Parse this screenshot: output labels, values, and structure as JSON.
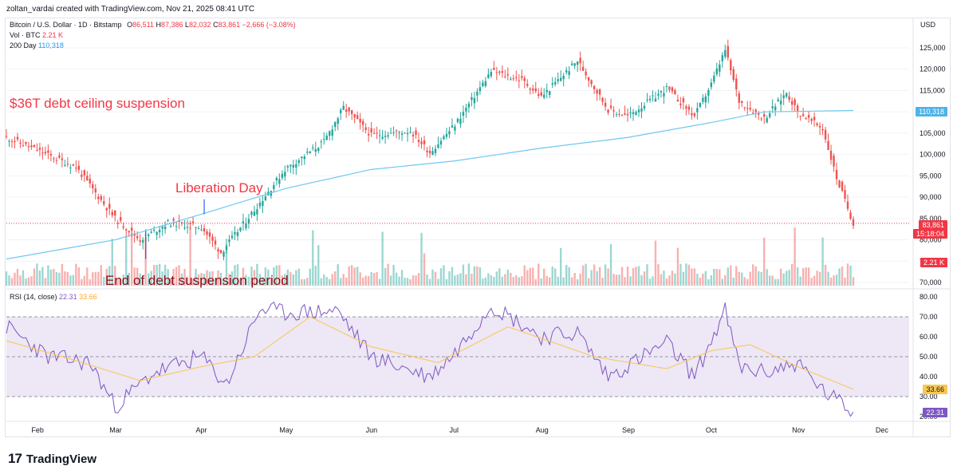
{
  "header": {
    "creator": "zoltan_vardai created with TradingView.com, Nov 21, 2025 08:41 UTC"
  },
  "legend": {
    "symbol": "Bitcoin / U.S. Dollar · 1D · Bitstamp",
    "o_label": "O",
    "o_value": "86,511",
    "h_label": "H",
    "h_value": "87,386",
    "l_label": "L",
    "l_value": "82,032",
    "c_label": "C",
    "c_value": "83,861",
    "change": "−2,666 (−3.08%)",
    "vol_label": "Vol · BTC",
    "vol_value": "2.21 K",
    "ma_label": "200 Day",
    "ma_value": "110,318"
  },
  "annotations": {
    "debt_ceiling": "$36T debt ceiling suspension",
    "liberation_day": "Liberation Day",
    "end_suspension": "End of debt suspension period"
  },
  "rsi": {
    "label": "RSI (14, close)",
    "value": "22.31",
    "ma_value": "33.66"
  },
  "price_axis": {
    "currency": "USD",
    "ticks": [
      "125,000",
      "120,000",
      "115,000",
      "110,000",
      "105,000",
      "100,000",
      "95,000",
      "90,000",
      "85,000",
      "80,000",
      "75,000",
      "70,000"
    ],
    "badges": {
      "ma": "110,318",
      "price": "83,861",
      "countdown": "15:18:04",
      "volume": "2.21 K"
    }
  },
  "rsi_axis": {
    "ticks": [
      "80.00",
      "70.00",
      "60.00",
      "50.00",
      "40.00",
      "30.00",
      "20.00"
    ],
    "badges": {
      "ma": "33.66",
      "rsi": "22.31"
    }
  },
  "time_axis": {
    "labels": [
      "Feb",
      "Mar",
      "Apr",
      "May",
      "Jun",
      "Jul",
      "Aug",
      "Sep",
      "Oct",
      "Nov",
      "Dec"
    ]
  },
  "footer": {
    "logo_mark": "17",
    "brand": "TradingView"
  },
  "colors": {
    "up": "#26a69a",
    "down": "#ef5350",
    "ma200": "#6fc7f0",
    "rsi": "#7e57c2",
    "rsi_ma": "#f9c74f",
    "rsi_band": "#ede7f6",
    "annotation": "#f23645"
  },
  "chart_data": [
    {
      "type": "candlestick",
      "title": "Bitcoin / U.S. Dollar · 1D · Bitstamp",
      "ylabel": "USD",
      "ylim": [
        70000,
        127000
      ],
      "x_range": [
        "2025-01-21",
        "2025-11-21"
      ],
      "last_close": 83861,
      "series": [
        {
          "name": "BTCUSD close (approx.)",
          "dates": [
            "2025-01-21",
            "2025-02-01",
            "2025-02-15",
            "2025-03-01",
            "2025-03-10",
            "2025-03-20",
            "2025-04-01",
            "2025-04-08",
            "2025-04-20",
            "2025-05-01",
            "2025-05-15",
            "2025-05-22",
            "2025-06-01",
            "2025-06-15",
            "2025-06-22",
            "2025-07-01",
            "2025-07-14",
            "2025-07-25",
            "2025-08-01",
            "2025-08-14",
            "2025-08-25",
            "2025-09-01",
            "2025-09-15",
            "2025-09-25",
            "2025-10-01",
            "2025-10-06",
            "2025-10-11",
            "2025-10-20",
            "2025-10-28",
            "2025-11-01",
            "2025-11-10",
            "2025-11-15",
            "2025-11-21"
          ],
          "values": [
            104000,
            101000,
            97000,
            85000,
            80000,
            84000,
            83000,
            77000,
            87000,
            96500,
            103000,
            111000,
            104500,
            105500,
            100500,
            107000,
            119500,
            117500,
            113500,
            122000,
            110500,
            109000,
            115500,
            109000,
            116500,
            124500,
            112500,
            108500,
            114500,
            110000,
            106000,
            94500,
            83861
          ]
        },
        {
          "name": "200 Day",
          "dates": [
            "2025-01-21",
            "2025-03-01",
            "2025-04-01",
            "2025-05-01",
            "2025-06-01",
            "2025-07-01",
            "2025-08-01",
            "2025-09-01",
            "2025-10-01",
            "2025-10-20",
            "2025-11-21"
          ],
          "values": [
            75500,
            80000,
            86000,
            92000,
            96500,
            98500,
            101500,
            104000,
            107500,
            110000,
            110318
          ]
        }
      ]
    },
    {
      "type": "line",
      "title": "RSI (14, close)",
      "ylim": [
        18,
        82
      ],
      "bands": [
        30,
        50,
        70
      ],
      "series": [
        {
          "name": "RSI",
          "dates": [
            "2025-01-21",
            "2025-02-05",
            "2025-02-20",
            "2025-03-01",
            "2025-03-15",
            "2025-04-01",
            "2025-04-10",
            "2025-04-22",
            "2025-05-01",
            "2025-05-20",
            "2025-06-01",
            "2025-06-22",
            "2025-07-01",
            "2025-07-14",
            "2025-08-01",
            "2025-08-14",
            "2025-08-25",
            "2025-09-15",
            "2025-09-25",
            "2025-10-06",
            "2025-10-11",
            "2025-10-20",
            "2025-11-01",
            "2025-11-10",
            "2025-11-21"
          ],
          "values": [
            65,
            50,
            47,
            25,
            42,
            50,
            36,
            74,
            72,
            73,
            50,
            40,
            52,
            76,
            60,
            62,
            40,
            57,
            40,
            73,
            45,
            42,
            47,
            33,
            22.31
          ]
        },
        {
          "name": "RSI MA",
          "dates": [
            "2025-01-21",
            "2025-02-15",
            "2025-03-10",
            "2025-04-01",
            "2025-04-20",
            "2025-05-10",
            "2025-06-01",
            "2025-06-25",
            "2025-07-20",
            "2025-08-20",
            "2025-09-15",
            "2025-10-01",
            "2025-10-15",
            "2025-11-01",
            "2025-11-21"
          ],
          "values": [
            58,
            48,
            38,
            45,
            50,
            70,
            55,
            47,
            65,
            50,
            44,
            53,
            56,
            45,
            33.66
          ]
        }
      ]
    }
  ]
}
